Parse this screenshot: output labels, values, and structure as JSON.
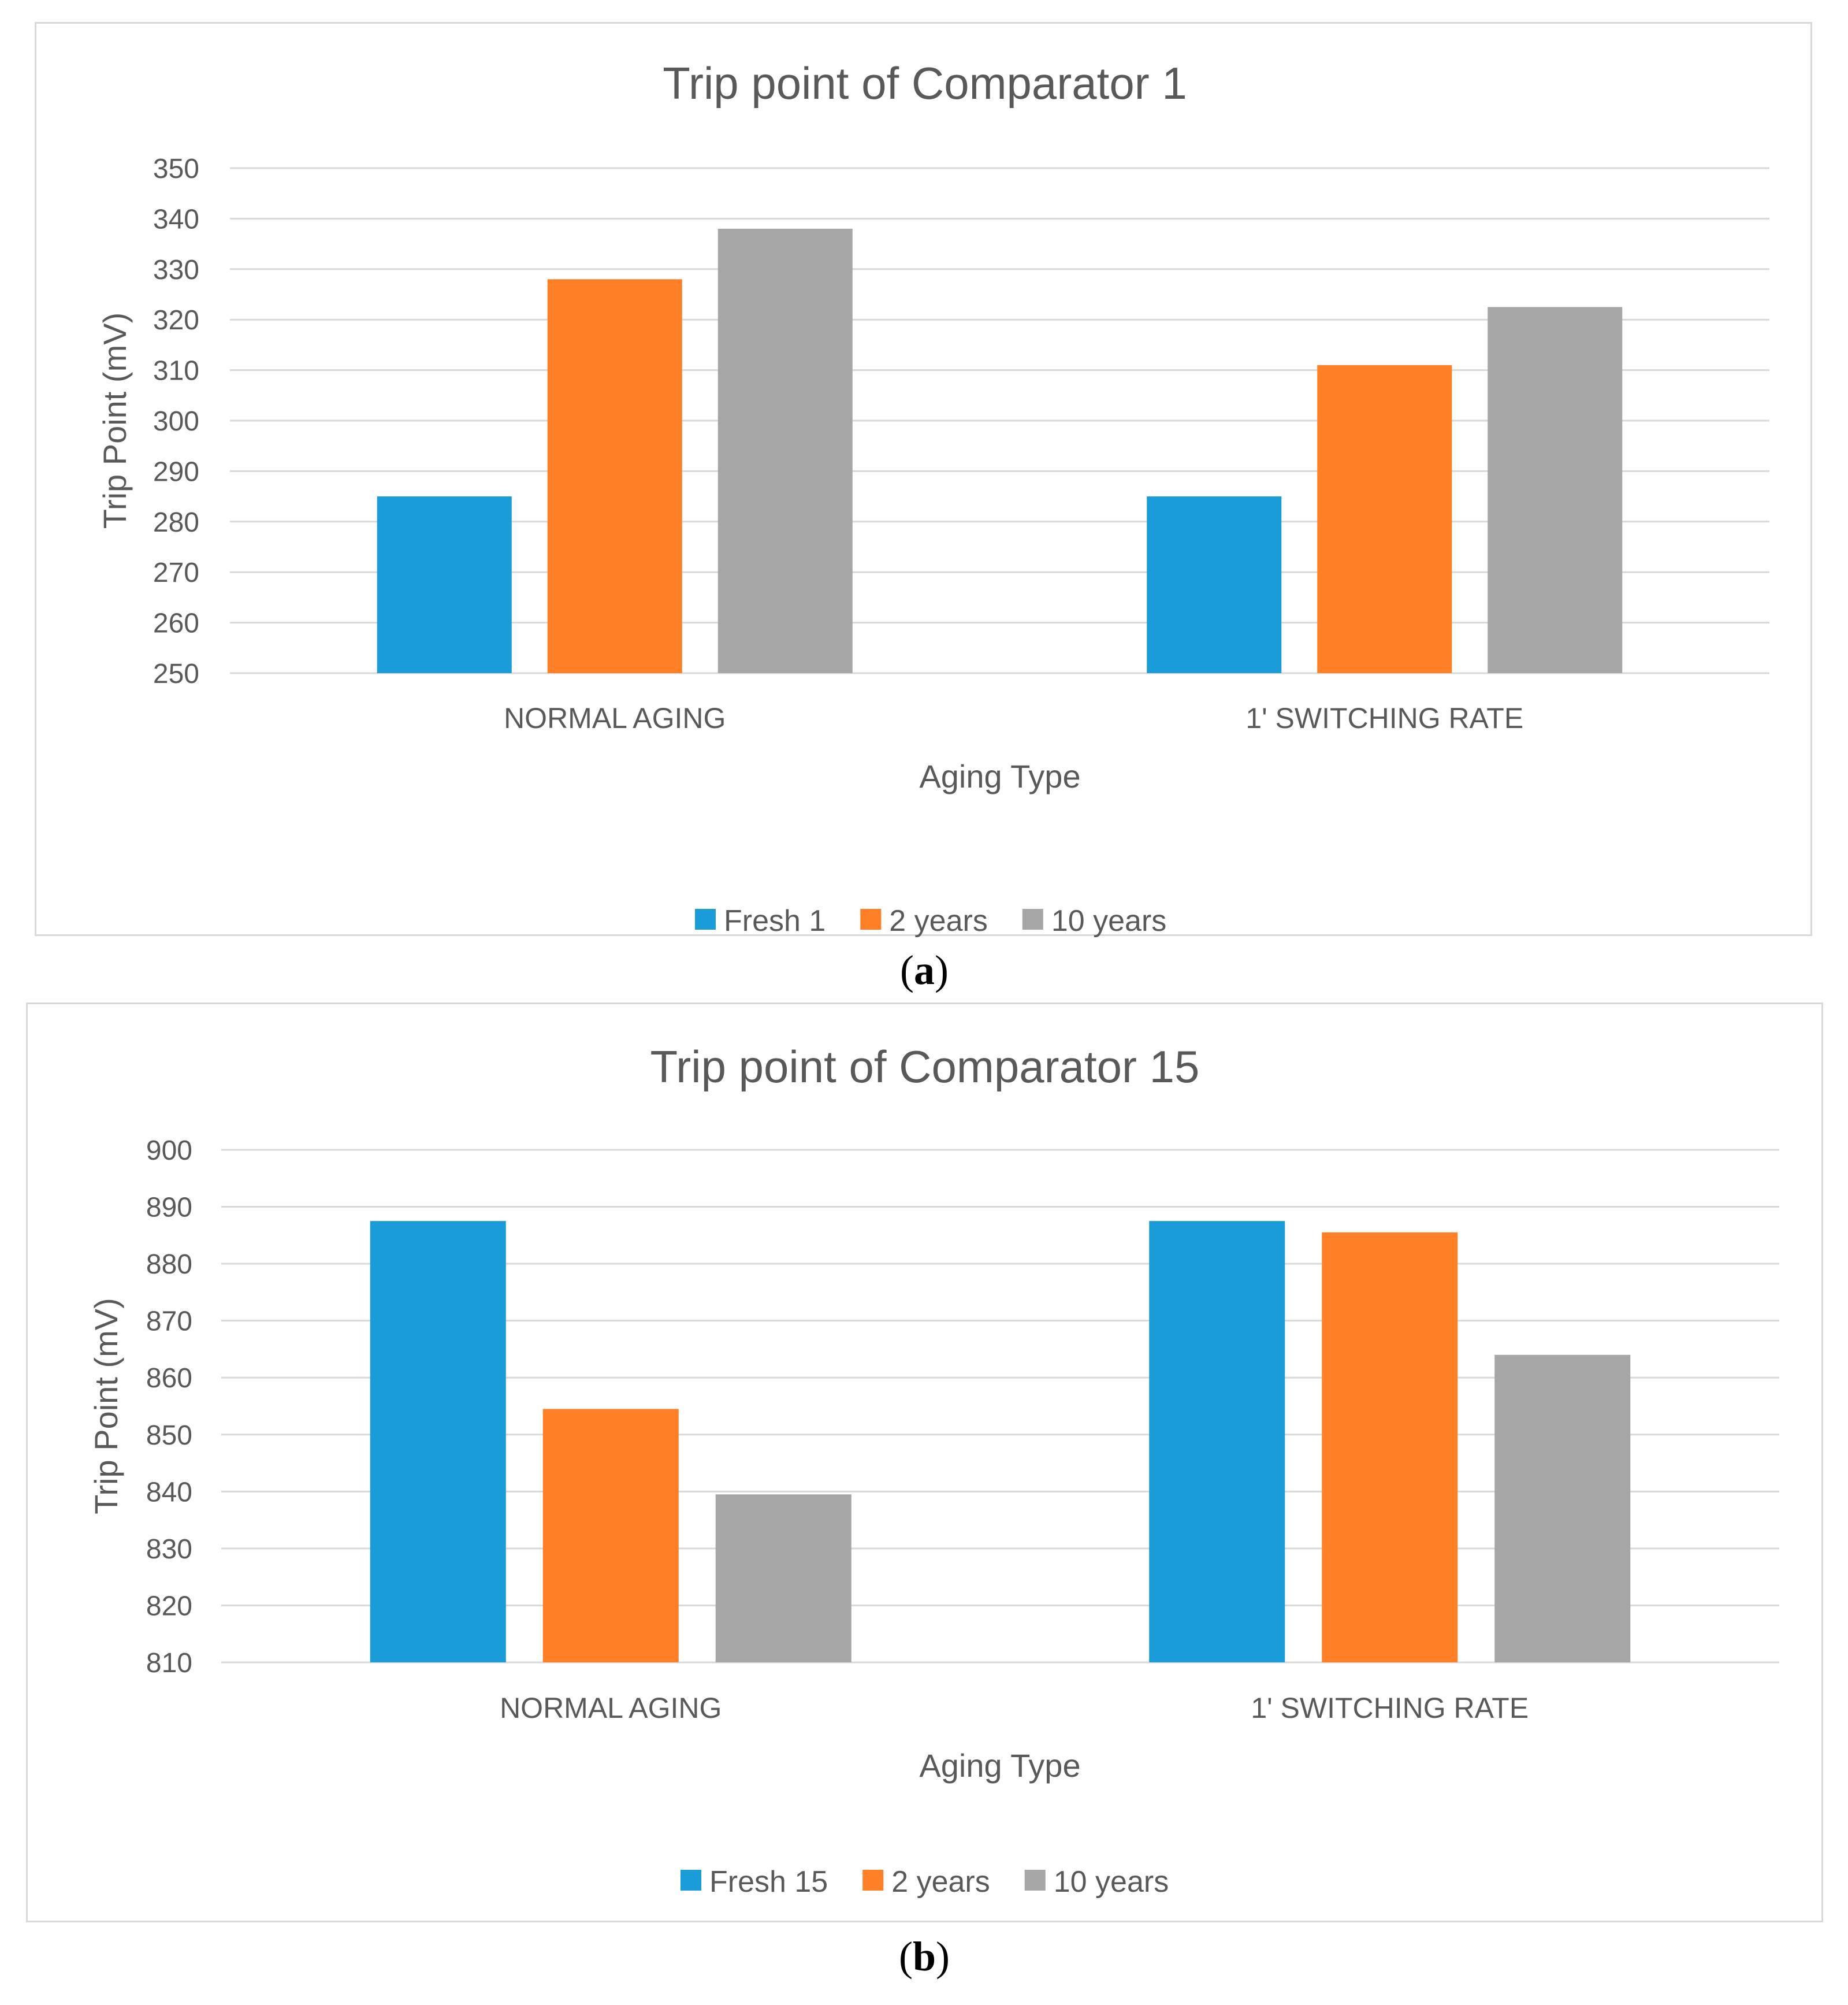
{
  "chart_data": [
    {
      "type": "bar",
      "title": "Trip point of Comparator 1",
      "xlabel": "Aging Type",
      "ylabel": "Trip Point (mV)",
      "ylim": [
        250,
        350
      ],
      "yticks": [
        250,
        260,
        270,
        280,
        290,
        300,
        310,
        320,
        330,
        340,
        350
      ],
      "categories": [
        "NORMAL AGING",
        "1' SWITCHING RATE"
      ],
      "series": [
        {
          "name": "Fresh 1",
          "color": "#1a9cd8",
          "values": [
            285,
            285
          ]
        },
        {
          "name": "2 years",
          "color": "#ff7f27",
          "values": [
            328,
            311
          ]
        },
        {
          "name": "10 years",
          "color": "#a6a6a6",
          "values": [
            338,
            322.5
          ]
        }
      ],
      "grid": true,
      "legend": "bottom"
    },
    {
      "type": "bar",
      "title": "Trip point of Comparator 15",
      "xlabel": "Aging Type",
      "ylabel": "Trip Point (mV)",
      "ylim": [
        810,
        900
      ],
      "yticks": [
        810,
        820,
        830,
        840,
        850,
        860,
        870,
        880,
        890,
        900
      ],
      "categories": [
        "NORMAL AGING",
        "1' SWITCHING RATE"
      ],
      "series": [
        {
          "name": "Fresh 15",
          "color": "#1a9cd8",
          "values": [
            887.5,
            887.5
          ]
        },
        {
          "name": "2 years",
          "color": "#ff7f27",
          "values": [
            854.5,
            885.5
          ]
        },
        {
          "name": "10 years",
          "color": "#a6a6a6",
          "values": [
            839.5,
            864
          ]
        }
      ],
      "grid": true,
      "legend": "bottom"
    }
  ],
  "captions": [
    {
      "letter": "a",
      "open": "(",
      "close": ")"
    },
    {
      "letter": "b",
      "open": "(",
      "close": ")"
    }
  ]
}
